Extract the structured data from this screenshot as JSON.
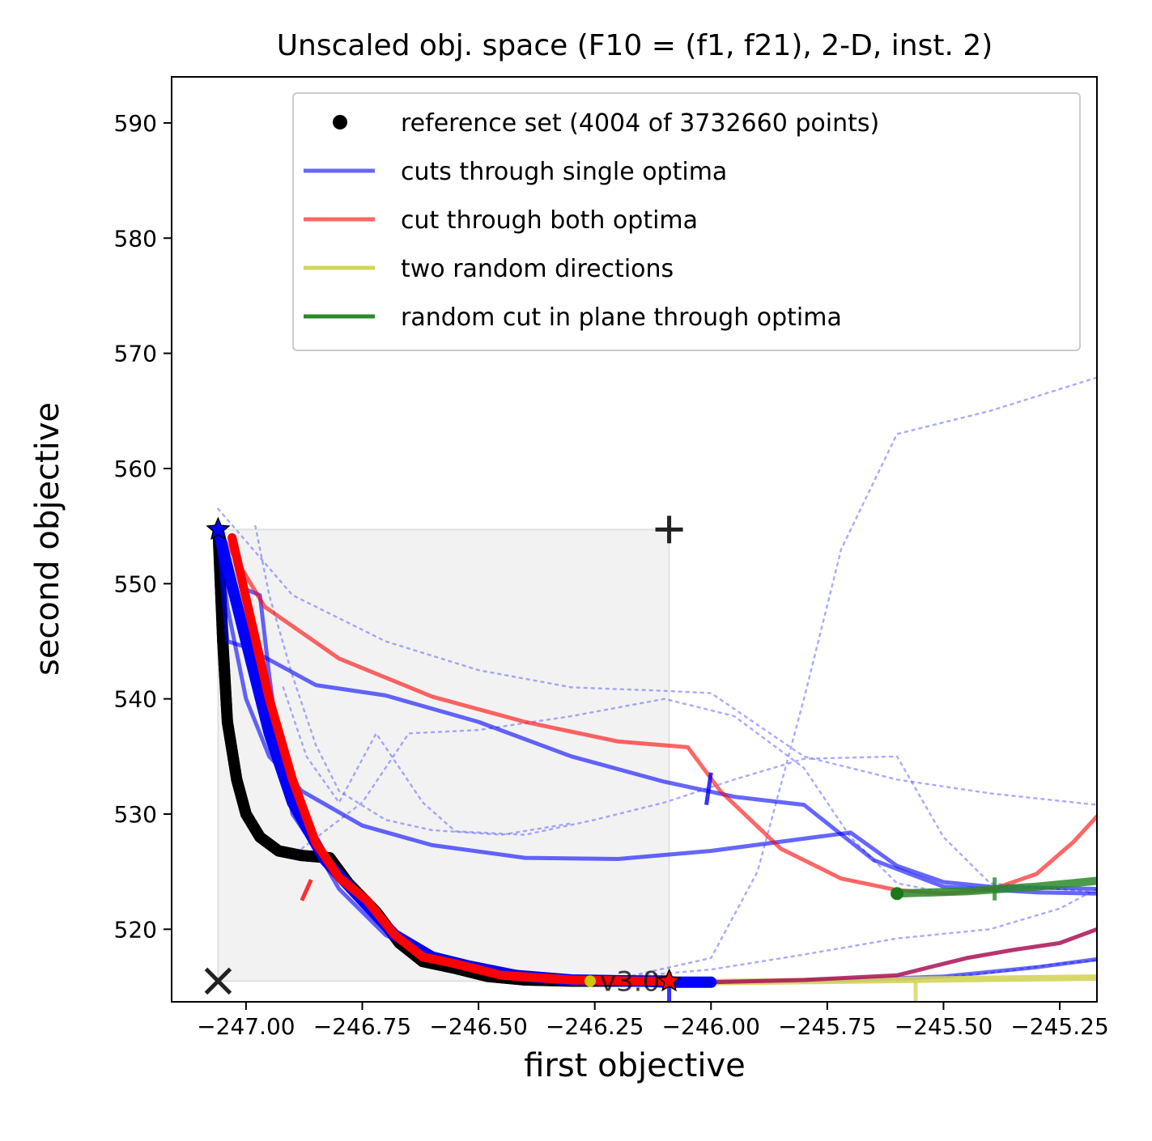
{
  "chart_data": {
    "type": "line",
    "title": "Unscaled obj. space (F10 = (f1, f21), 2-D, inst. 2)",
    "xlabel": "first objective",
    "ylabel": "second objective",
    "xlim": [
      -247.16,
      -245.17
    ],
    "ylim": [
      513.7,
      594.0
    ],
    "grid": false,
    "legend_placement": "top-right",
    "x_ticks": [
      {
        "value": -247.0,
        "label": "−247.00"
      },
      {
        "value": -246.75,
        "label": "−246.75"
      },
      {
        "value": -246.5,
        "label": "−246.50"
      },
      {
        "value": -246.25,
        "label": "−246.25"
      },
      {
        "value": -246.0,
        "label": "−246.00"
      },
      {
        "value": -245.75,
        "label": "−245.75"
      },
      {
        "value": -245.5,
        "label": "−245.50"
      },
      {
        "value": -245.25,
        "label": "−245.25"
      }
    ],
    "y_ticks": [
      {
        "value": 520,
        "label": "520"
      },
      {
        "value": 530,
        "label": "530"
      },
      {
        "value": 540,
        "label": "540"
      },
      {
        "value": 550,
        "label": "550"
      },
      {
        "value": 560,
        "label": "560"
      },
      {
        "value": 570,
        "label": "570"
      },
      {
        "value": 580,
        "label": "580"
      },
      {
        "value": 590,
        "label": "590"
      }
    ],
    "legend": [
      {
        "label": "reference set (4004 of 3732660 points)",
        "marker": "dot",
        "color": "#000000"
      },
      {
        "label": "cuts through single optima",
        "marker": "line",
        "color": "#6666ff"
      },
      {
        "label": "cut through both optima",
        "marker": "line",
        "color": "#ff6666"
      },
      {
        "label": "two random directions",
        "marker": "line",
        "color": "#d4d45a"
      },
      {
        "label": "random cut in plane through optima",
        "marker": "line",
        "color": "#2a8a2a"
      }
    ],
    "annotation_text": "v3.0",
    "dominated_region": {
      "x": [
        -247.06,
        -246.09
      ],
      "y": [
        515.5,
        554.7
      ],
      "color": "#f2f2f2"
    },
    "markers": [
      {
        "name": "ideal-point",
        "symbol": "x",
        "x": -247.06,
        "y": 515.5
      },
      {
        "name": "nadir-point",
        "symbol": "plus",
        "x": -246.09,
        "y": 554.7
      },
      {
        "name": "optimum-1",
        "symbol": "star",
        "x": -247.06,
        "y": 554.7,
        "color": "#0000ff"
      },
      {
        "name": "optimum-2",
        "symbol": "star",
        "x": -246.09,
        "y": 515.5,
        "color": "#ff0000"
      },
      {
        "name": "random-point",
        "symbol": "dot",
        "x": -246.26,
        "y": 515.5,
        "color": "#c8c800"
      }
    ],
    "series": [
      {
        "name": "reference set (4004 of 3732660 points)",
        "kind": "reference",
        "color": "#000000",
        "points": [
          [
            -247.06,
            554.7
          ],
          [
            -247.05,
            545
          ],
          [
            -247.04,
            538
          ],
          [
            -247.02,
            533
          ],
          [
            -247.0,
            530
          ],
          [
            -246.97,
            528
          ],
          [
            -246.93,
            526.8
          ],
          [
            -246.88,
            526.4
          ],
          [
            -246.82,
            526.2
          ],
          [
            -246.78,
            524
          ],
          [
            -246.72,
            521.5
          ],
          [
            -246.67,
            518.8
          ],
          [
            -246.62,
            517.2
          ],
          [
            -246.55,
            516.6
          ],
          [
            -246.48,
            515.9
          ],
          [
            -246.4,
            515.6
          ],
          [
            -246.3,
            515.5
          ],
          [
            -246.2,
            515.5
          ],
          [
            -246.09,
            515.5
          ]
        ]
      },
      {
        "kind": "single-cut",
        "color": "#0000ff",
        "opacity": 0.6,
        "width": 5,
        "points": [
          [
            -247.06,
            554.5
          ],
          [
            -247.04,
            548
          ],
          [
            -247.0,
            540
          ],
          [
            -246.95,
            535
          ],
          [
            -246.88,
            532
          ],
          [
            -246.75,
            529
          ],
          [
            -246.6,
            527.3
          ],
          [
            -246.4,
            526.2
          ],
          [
            -246.2,
            526.1
          ],
          [
            -246.0,
            526.8
          ],
          [
            -245.85,
            527.6
          ],
          [
            -245.7,
            528.4
          ],
          [
            -245.6,
            525.5
          ],
          [
            -245.5,
            524.1
          ],
          [
            -245.4,
            523.7
          ],
          [
            -245.17,
            523.5
          ]
        ]
      },
      {
        "kind": "single-cut",
        "color": "#0000ff",
        "opacity": 0.6,
        "width": 5,
        "points": [
          [
            -247.06,
            554.0
          ],
          [
            -247.04,
            545
          ],
          [
            -247.0,
            544.5
          ],
          [
            -246.85,
            541.2
          ],
          [
            -246.7,
            540.3
          ],
          [
            -246.5,
            538
          ],
          [
            -246.3,
            535
          ],
          [
            -246.1,
            532.8
          ],
          [
            -245.95,
            531.5
          ],
          [
            -245.8,
            530.8
          ],
          [
            -245.65,
            526
          ],
          [
            -245.5,
            523.7
          ],
          [
            -245.3,
            523.2
          ],
          [
            -245.17,
            523.1
          ]
        ]
      },
      {
        "kind": "single-cut",
        "color": "#0000ff",
        "opacity": 0.6,
        "width": 5,
        "points": [
          [
            -247.0,
            549.5
          ],
          [
            -246.97,
            549
          ],
          [
            -246.95,
            542
          ],
          [
            -246.93,
            536
          ],
          [
            -246.9,
            530
          ],
          [
            -246.85,
            527
          ],
          [
            -246.8,
            523.5
          ],
          [
            -246.7,
            519.5
          ],
          [
            -246.6,
            517.5
          ],
          [
            -246.5,
            516.4
          ],
          [
            -246.35,
            515.7
          ],
          [
            -246.2,
            515.5
          ],
          [
            -246.09,
            515.5
          ],
          [
            -245.9,
            515.5
          ],
          [
            -245.7,
            515.6
          ],
          [
            -245.5,
            515.9
          ],
          [
            -245.3,
            516.7
          ],
          [
            -245.17,
            517.4
          ]
        ]
      },
      {
        "kind": "single-cut-bold",
        "color": "#0000ff",
        "opacity": 1.0,
        "width": 14,
        "points": [
          [
            -247.06,
            554.7
          ],
          [
            -247.0,
            545
          ],
          [
            -246.95,
            537
          ],
          [
            -246.9,
            531
          ],
          [
            -246.83,
            526
          ],
          [
            -246.75,
            522.5
          ],
          [
            -246.68,
            519.5
          ],
          [
            -246.6,
            517.6
          ],
          [
            -246.52,
            516.8
          ],
          [
            -246.42,
            516.0
          ],
          [
            -246.3,
            515.6
          ],
          [
            -246.15,
            515.5
          ],
          [
            -246.09,
            515.4
          ],
          [
            -246.0,
            515.4
          ]
        ]
      },
      {
        "kind": "both-cut",
        "color": "#ff0000",
        "opacity": 0.6,
        "width": 5,
        "points": [
          [
            -247.06,
            554.7
          ],
          [
            -246.96,
            548
          ],
          [
            -246.8,
            543.5
          ],
          [
            -246.6,
            540.2
          ],
          [
            -246.4,
            538
          ],
          [
            -246.2,
            536.3
          ],
          [
            -246.05,
            535.8
          ],
          [
            -245.98,
            532
          ],
          [
            -245.85,
            527
          ],
          [
            -245.72,
            524.4
          ],
          [
            -245.6,
            523.4
          ],
          [
            -245.5,
            523.1
          ],
          [
            -245.4,
            523.4
          ],
          [
            -245.3,
            524.8
          ],
          [
            -245.22,
            527.6
          ],
          [
            -245.17,
            529.8
          ]
        ]
      },
      {
        "kind": "both-cut-bold",
        "color": "#ff0000",
        "opacity": 1.0,
        "width": 11,
        "points": [
          [
            -247.03,
            554.0
          ],
          [
            -246.99,
            547
          ],
          [
            -246.95,
            540
          ],
          [
            -246.9,
            533
          ],
          [
            -246.85,
            527.5
          ],
          [
            -246.8,
            524.5
          ],
          [
            -246.74,
            522.5
          ],
          [
            -246.68,
            519.5
          ],
          [
            -246.62,
            517.6
          ],
          [
            -246.55,
            517.0
          ],
          [
            -246.45,
            516.0
          ],
          [
            -246.3,
            515.6
          ],
          [
            -246.15,
            515.5
          ],
          [
            -246.09,
            515.5
          ]
        ]
      },
      {
        "kind": "random-plane-cut",
        "color": "#aa1155",
        "opacity": 0.85,
        "width": 5,
        "points": [
          [
            -246.0,
            515.4
          ],
          [
            -245.8,
            515.6
          ],
          [
            -245.6,
            516.0
          ],
          [
            -245.45,
            517.5
          ],
          [
            -245.35,
            518.2
          ],
          [
            -245.25,
            518.8
          ],
          [
            -245.17,
            520.0
          ]
        ]
      },
      {
        "kind": "random-directions",
        "color": "#d4d45a",
        "opacity": 0.9,
        "width": 8,
        "points": [
          [
            -246.0,
            515.4
          ],
          [
            -245.8,
            515.5
          ],
          [
            -245.6,
            515.6
          ],
          [
            -245.4,
            515.7
          ],
          [
            -245.17,
            515.8
          ]
        ]
      },
      {
        "kind": "random-plane-cut",
        "color": "#2a8a2a",
        "opacity": 0.85,
        "width": 10,
        "points": [
          [
            -245.6,
            523.1
          ],
          [
            -245.45,
            523.3
          ],
          [
            -245.3,
            523.7
          ],
          [
            -245.17,
            524.2
          ]
        ]
      },
      {
        "kind": "dotted",
        "color": "#6666ff",
        "opacity": 0.55,
        "width": 2.5,
        "points": [
          [
            -247.06,
            556.5
          ],
          [
            -246.9,
            549
          ],
          [
            -246.7,
            545
          ],
          [
            -246.5,
            542.5
          ],
          [
            -246.3,
            541
          ],
          [
            -246.1,
            540.7
          ],
          [
            -246.0,
            540.5
          ],
          [
            -245.8,
            535
          ],
          [
            -245.6,
            533
          ],
          [
            -245.4,
            531.8
          ],
          [
            -245.17,
            530.8
          ]
        ]
      },
      {
        "kind": "dotted",
        "color": "#6666ff",
        "opacity": 0.55,
        "width": 2.5,
        "points": [
          [
            -246.92,
            541
          ],
          [
            -246.87,
            535
          ],
          [
            -246.8,
            531
          ],
          [
            -246.72,
            537
          ],
          [
            -246.62,
            531
          ],
          [
            -246.55,
            528.5
          ],
          [
            -246.4,
            528.2
          ],
          [
            -246.25,
            529.5
          ],
          [
            -246.1,
            531
          ],
          [
            -245.95,
            533
          ],
          [
            -245.8,
            534.8
          ],
          [
            -245.6,
            535
          ],
          [
            -245.5,
            528
          ],
          [
            -245.4,
            524
          ],
          [
            -245.17,
            523.2
          ]
        ]
      },
      {
        "kind": "dotted",
        "color": "#6666ff",
        "opacity": 0.55,
        "width": 2.5,
        "points": [
          [
            -246.88,
            527
          ],
          [
            -246.75,
            531
          ],
          [
            -246.65,
            537
          ],
          [
            -246.5,
            537.3
          ],
          [
            -246.3,
            538.5
          ],
          [
            -246.1,
            540
          ],
          [
            -245.95,
            538.5
          ],
          [
            -245.8,
            534
          ],
          [
            -245.7,
            528
          ],
          [
            -245.6,
            524
          ],
          [
            -245.5,
            523.2
          ]
        ]
      },
      {
        "kind": "dotted",
        "color": "#6666ff",
        "opacity": 0.55,
        "width": 2.5,
        "points": [
          [
            -246.2,
            515.8
          ],
          [
            -246.0,
            516.5
          ],
          [
            -245.8,
            517.8
          ],
          [
            -245.6,
            519.2
          ],
          [
            -245.4,
            520.0
          ],
          [
            -245.25,
            521.8
          ],
          [
            -245.17,
            523.5
          ]
        ]
      },
      {
        "kind": "dotted",
        "color": "#6666ff",
        "opacity": 0.55,
        "width": 2.5,
        "points": [
          [
            -246.2,
            515.7
          ],
          [
            -246.0,
            517.5
          ],
          [
            -245.9,
            525
          ],
          [
            -245.8,
            540
          ],
          [
            -245.72,
            553
          ],
          [
            -245.6,
            563
          ],
          [
            -245.4,
            565
          ],
          [
            -245.17,
            567.9
          ]
        ]
      },
      {
        "kind": "dotted",
        "color": "#6666ff",
        "opacity": 0.55,
        "width": 2.5,
        "points": [
          [
            -246.98,
            555
          ],
          [
            -246.95,
            549
          ],
          [
            -246.9,
            542
          ],
          [
            -246.85,
            536
          ],
          [
            -246.8,
            532
          ],
          [
            -246.7,
            529.5
          ],
          [
            -246.6,
            528.6
          ],
          [
            -246.45,
            528.2
          ],
          [
            -246.3,
            529.2
          ]
        ]
      },
      {
        "kind": "dotted",
        "color": "#6666ff",
        "opacity": 0.55,
        "width": 2.5,
        "points": [
          [
            -245.6,
            515.5
          ],
          [
            -245.4,
            516.2
          ],
          [
            -245.25,
            517.0
          ],
          [
            -245.17,
            517.3
          ]
        ]
      }
    ],
    "cut_ticks": [
      {
        "color": "#0000ff",
        "x": -246.0,
        "y": 533.6,
        "dx": -0.01,
        "dy": -2.8
      },
      {
        "color": "#0000ff",
        "x": -246.09,
        "y": 515.0,
        "dx": 0.0,
        "dy": -2.6
      },
      {
        "color": "#ff0000",
        "x": -246.88,
        "y": 522.5,
        "dx": 0.02,
        "dy": 1.8
      },
      {
        "color": "#d4d45a",
        "x": -245.56,
        "y": 515.5,
        "dx": 0.0,
        "dy": -2.4
      },
      {
        "color": "#2a8a2a",
        "x": -245.39,
        "y": 524.5,
        "dx": 0.0,
        "dy": -2.0
      }
    ]
  }
}
